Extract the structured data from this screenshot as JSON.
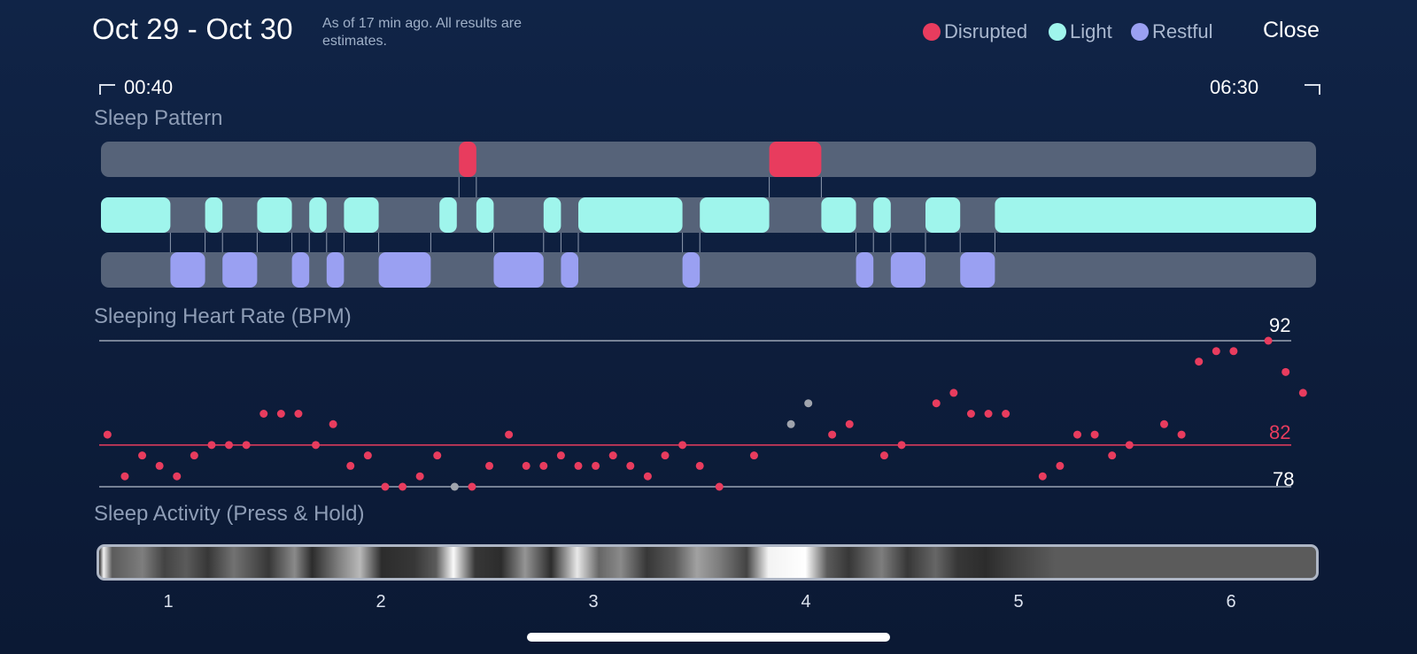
{
  "header": {
    "title": "Oct 29 - Oct 30",
    "note": "As of 17 min ago. All results are estimates.",
    "close_label": "Close"
  },
  "legend": [
    {
      "label": "Disrupted",
      "color": "#e83c5e"
    },
    {
      "label": "Light",
      "color": "#9ff5ec"
    },
    {
      "label": "Restful",
      "color": "#9aa0f2"
    }
  ],
  "time_range": {
    "start": "00:40",
    "end": "06:30"
  },
  "sleep_pattern": {
    "title": "Sleep Pattern",
    "x_range": [
      0.7,
      6.3
    ],
    "track_color": "#566379",
    "disrupted": [
      [
        2.35,
        2.43
      ],
      [
        3.78,
        4.02
      ]
    ],
    "light": [
      [
        0.7,
        1.02
      ],
      [
        1.18,
        1.26
      ],
      [
        1.42,
        1.58
      ],
      [
        1.66,
        1.74
      ],
      [
        1.82,
        1.98
      ],
      [
        2.26,
        2.34
      ],
      [
        2.43,
        2.51
      ],
      [
        2.74,
        2.82
      ],
      [
        2.9,
        3.38
      ],
      [
        3.46,
        3.78
      ],
      [
        4.02,
        4.18
      ],
      [
        4.26,
        4.34
      ],
      [
        4.5,
        4.66
      ],
      [
        4.82,
        6.3
      ]
    ],
    "restful": [
      [
        1.02,
        1.18
      ],
      [
        1.26,
        1.42
      ],
      [
        1.58,
        1.66
      ],
      [
        1.74,
        1.82
      ],
      [
        1.98,
        2.22
      ],
      [
        2.51,
        2.74
      ],
      [
        2.82,
        2.9
      ],
      [
        3.38,
        3.46
      ],
      [
        4.18,
        4.26
      ],
      [
        4.34,
        4.5
      ],
      [
        4.66,
        4.82
      ]
    ]
  },
  "heart_rate": {
    "title": "Sleeping Heart Rate (BPM)",
    "max_label": "92",
    "avg_label": "82",
    "min_label": "78",
    "dot_color": "#e83c5e",
    "missing_color": "#a0a4ad"
  },
  "chart_data": {
    "type": "scatter",
    "title": "Sleeping Heart Rate (BPM)",
    "x_range": [
      0.7,
      6.3
    ],
    "ylim": [
      78,
      92
    ],
    "reference_lines": [
      92,
      82,
      78
    ],
    "series": [
      {
        "values": [
          [
            0.73,
            83
          ],
          [
            0.81,
            79
          ],
          [
            0.89,
            81
          ],
          [
            0.97,
            80
          ],
          [
            1.05,
            79
          ],
          [
            1.13,
            81
          ],
          [
            1.21,
            82
          ],
          [
            1.29,
            82
          ],
          [
            1.37,
            82
          ],
          [
            1.45,
            85
          ],
          [
            1.53,
            85
          ],
          [
            1.61,
            85
          ],
          [
            1.69,
            82
          ],
          [
            1.77,
            84
          ],
          [
            1.85,
            80
          ],
          [
            1.93,
            81
          ],
          [
            2.01,
            78
          ],
          [
            2.09,
            78
          ],
          [
            2.17,
            79
          ],
          [
            2.25,
            81
          ],
          [
            2.41,
            78
          ],
          [
            2.49,
            80
          ],
          [
            2.58,
            83
          ],
          [
            2.66,
            80
          ],
          [
            2.74,
            80
          ],
          [
            2.82,
            81
          ],
          [
            2.9,
            80
          ],
          [
            2.98,
            80
          ],
          [
            3.06,
            81
          ],
          [
            3.14,
            80
          ],
          [
            3.22,
            79
          ],
          [
            3.3,
            81
          ],
          [
            3.38,
            82
          ],
          [
            3.46,
            80
          ],
          [
            3.55,
            78
          ],
          [
            3.71,
            81
          ],
          [
            4.07,
            83
          ],
          [
            4.15,
            84
          ],
          [
            4.31,
            81
          ],
          [
            4.39,
            82
          ],
          [
            4.55,
            86
          ],
          [
            4.63,
            87
          ],
          [
            4.71,
            85
          ],
          [
            4.79,
            85
          ],
          [
            4.87,
            85
          ],
          [
            5.04,
            79
          ],
          [
            5.12,
            80
          ],
          [
            5.2,
            83
          ],
          [
            5.28,
            83
          ],
          [
            5.36,
            81
          ],
          [
            5.44,
            82
          ],
          [
            5.6,
            84
          ],
          [
            5.68,
            83
          ],
          [
            5.76,
            90
          ],
          [
            5.84,
            91
          ],
          [
            5.92,
            91
          ],
          [
            6.08,
            92
          ],
          [
            6.16,
            89
          ],
          [
            6.24,
            87
          ]
        ]
      },
      {
        "values": [
          [
            2.33,
            78
          ],
          [
            3.88,
            84
          ],
          [
            3.96,
            86
          ]
        ]
      }
    ],
    "x_ticks": [
      "1",
      "2",
      "3",
      "4",
      "5",
      "6"
    ]
  },
  "activity": {
    "title": "Sleep Activity (Press & Hold)",
    "x_range": [
      0.7,
      6.3
    ],
    "intensity": [
      [
        0.7,
        0.1
      ],
      [
        0.72,
        0.95
      ],
      [
        0.76,
        0.3
      ],
      [
        0.9,
        0.45
      ],
      [
        1.0,
        0.2
      ],
      [
        1.1,
        0.3
      ],
      [
        1.2,
        0.15
      ],
      [
        1.32,
        0.4
      ],
      [
        1.48,
        0.15
      ],
      [
        1.6,
        0.5
      ],
      [
        1.68,
        0.1
      ],
      [
        1.8,
        0.45
      ],
      [
        1.9,
        0.7
      ],
      [
        2.0,
        0.1
      ],
      [
        2.15,
        0.15
      ],
      [
        2.25,
        0.3
      ],
      [
        2.33,
        0.98
      ],
      [
        2.43,
        0.15
      ],
      [
        2.55,
        0.1
      ],
      [
        2.66,
        0.55
      ],
      [
        2.78,
        0.1
      ],
      [
        2.9,
        0.9
      ],
      [
        3.0,
        0.35
      ],
      [
        3.1,
        0.5
      ],
      [
        3.22,
        0.15
      ],
      [
        3.35,
        0.3
      ],
      [
        3.45,
        0.6
      ],
      [
        3.55,
        0.45
      ],
      [
        3.68,
        0.2
      ],
      [
        3.78,
        0.95
      ],
      [
        3.95,
        1.0
      ],
      [
        4.05,
        0.3
      ],
      [
        4.15,
        0.15
      ],
      [
        4.3,
        0.45
      ],
      [
        4.42,
        0.15
      ],
      [
        4.55,
        0.35
      ],
      [
        4.65,
        0.15
      ],
      [
        4.78,
        0.1
      ],
      [
        4.92,
        0.2
      ],
      [
        5.1,
        0.3
      ],
      [
        6.3,
        0.3
      ]
    ]
  }
}
